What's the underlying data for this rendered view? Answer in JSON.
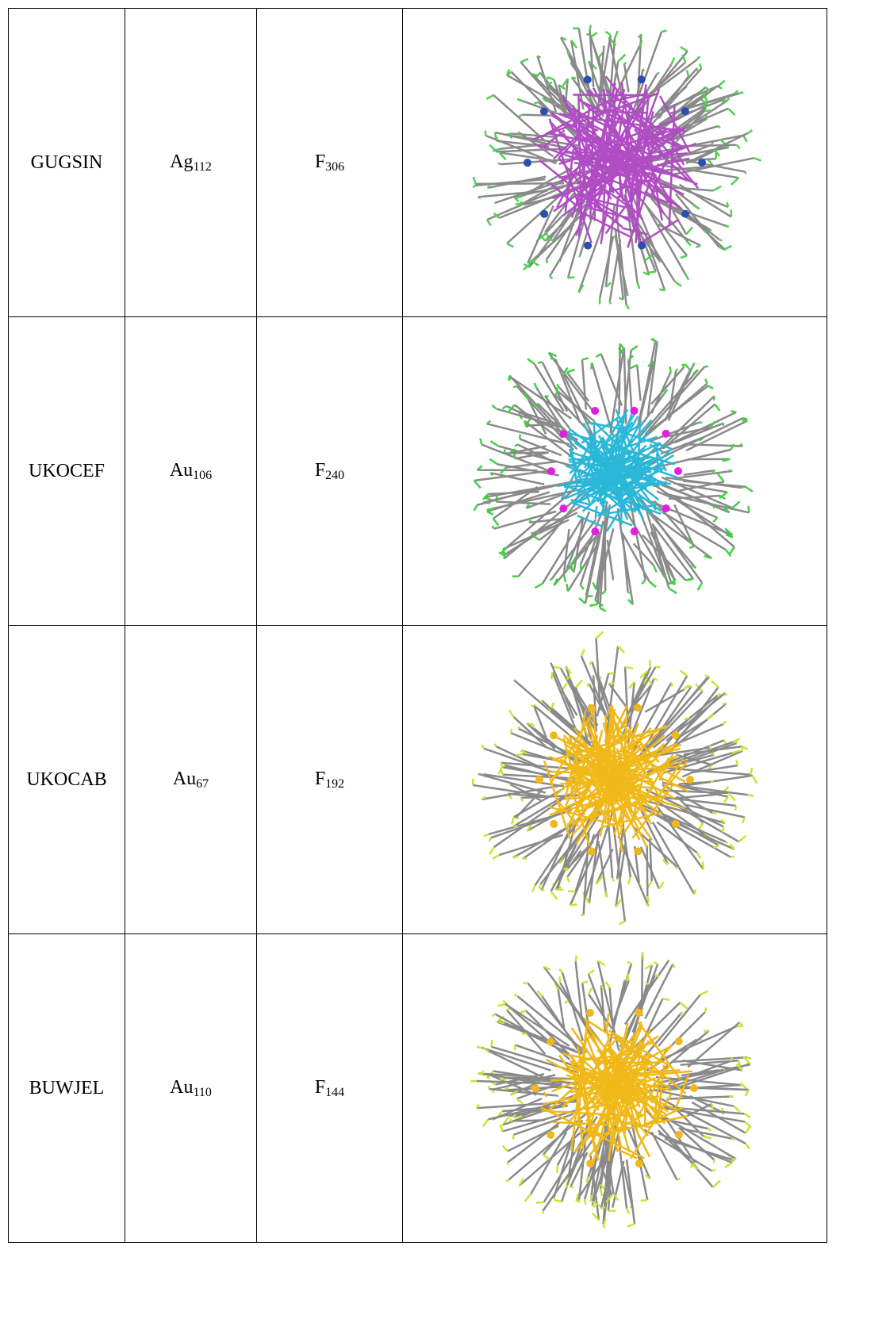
{
  "table": {
    "rows": [
      {
        "name": "GUGSIN",
        "metal": {
          "symbol": "Ag",
          "count": "112"
        },
        "fluorine": {
          "symbol": "F",
          "count": "306"
        }
      },
      {
        "name": "UKOCEF",
        "metal": {
          "symbol": "Au",
          "count": "106"
        },
        "fluorine": {
          "symbol": "F",
          "count": "240"
        }
      },
      {
        "name": "UKOCAB",
        "metal": {
          "symbol": "Au",
          "count": "67"
        },
        "fluorine": {
          "symbol": "F",
          "count": "192"
        }
      },
      {
        "name": "BUWJEL",
        "metal": {
          "symbol": "Au",
          "count": "110"
        },
        "fluorine": {
          "symbol": "F",
          "count": "144"
        }
      }
    ]
  }
}
